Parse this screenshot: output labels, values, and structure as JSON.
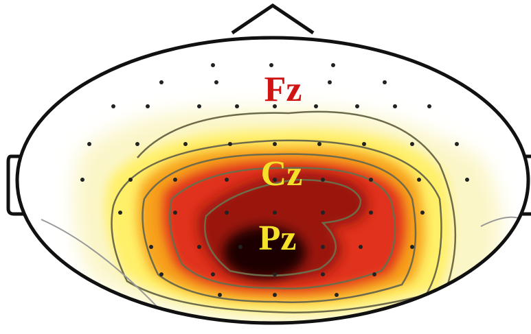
{
  "electrodes": [
    {
      "label": "Fz"
    },
    {
      "label": "Cz"
    },
    {
      "label": "Pz"
    }
  ]
}
